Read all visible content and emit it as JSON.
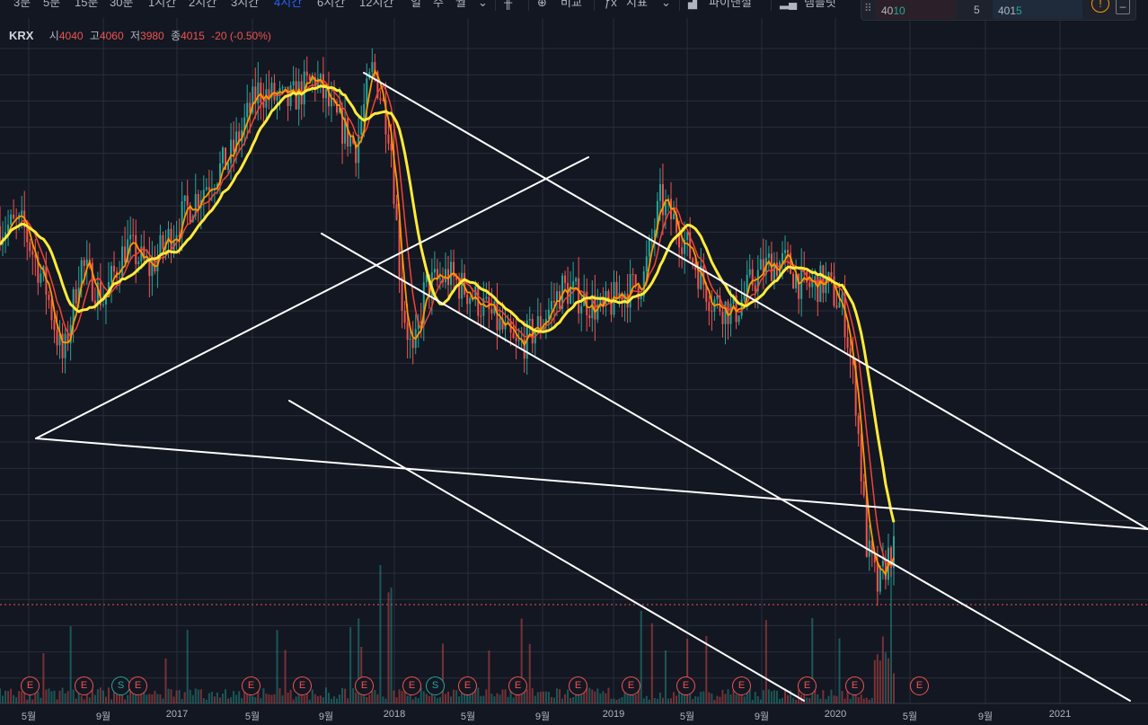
{
  "toolbar": {
    "intervals": [
      "3분",
      "5분",
      "15분",
      "30분",
      "1시간",
      "2시간",
      "3시간",
      "4시간",
      "6시간",
      "12시간",
      "일",
      "주",
      "월"
    ],
    "active_interval": "4시간",
    "compare_label": "비교",
    "indicators_label": "지표",
    "financials_label": "파이낸셜",
    "templates_label": "템플릿"
  },
  "widget": {
    "left_prefix": "40",
    "left_suffix": "10",
    "qty": "5",
    "right_prefix": "401",
    "right_suffix": "5"
  },
  "legend": {
    "symbol": "KRX",
    "open_label": "시",
    "open": "4040",
    "high_label": "고",
    "high": "4060",
    "low_label": "저",
    "low": "3980",
    "close_label": "종",
    "close": "4015",
    "change": "-20 (-0.50%)"
  },
  "x_axis": [
    "5월",
    "9월",
    "2017",
    "5월",
    "9월",
    "2018",
    "5월",
    "9월",
    "2019",
    "5월",
    "9월",
    "2020",
    "5월",
    "9월",
    "2021"
  ],
  "events": [
    {
      "type": "E"
    },
    {
      "type": "E"
    },
    {
      "type": "S"
    },
    {
      "type": "E"
    },
    {
      "type": "E"
    },
    {
      "type": "E"
    },
    {
      "type": "E"
    },
    {
      "type": "E"
    },
    {
      "type": "S"
    },
    {
      "type": "E"
    },
    {
      "type": "E"
    },
    {
      "type": "E"
    },
    {
      "type": "E"
    },
    {
      "type": "E"
    },
    {
      "type": "E"
    },
    {
      "type": "E"
    },
    {
      "type": "E"
    },
    {
      "type": "E"
    }
  ],
  "colors": {
    "background": "#131722",
    "grid": "#2a2e39",
    "up": "#26a69a",
    "down": "#ef5350",
    "ma_yellow": "#ffeb3b",
    "ma_orange": "#ff9800",
    "ma_red": "#f44336",
    "trendline": "#ffffff",
    "accent": "#2962ff"
  },
  "chart_data": {
    "type": "candlestick",
    "symbol": "KRX",
    "x_labels": [
      "5월",
      "9월",
      "2017",
      "5월",
      "9월",
      "2018",
      "5월",
      "9월",
      "2019",
      "5월",
      "9월",
      "2020",
      "5월",
      "9월",
      "2021"
    ],
    "price_shape_anchors": [
      [
        0,
        0.72
      ],
      [
        0.02,
        0.72
      ],
      [
        0.04,
        0.62
      ],
      [
        0.055,
        0.5
      ],
      [
        0.07,
        0.66
      ],
      [
        0.09,
        0.6
      ],
      [
        0.11,
        0.69
      ],
      [
        0.13,
        0.65
      ],
      [
        0.16,
        0.74
      ],
      [
        0.18,
        0.79
      ],
      [
        0.2,
        0.83
      ],
      [
        0.225,
        0.94
      ],
      [
        0.25,
        0.92
      ],
      [
        0.275,
        0.96
      ],
      [
        0.29,
        0.9
      ],
      [
        0.31,
        0.85
      ],
      [
        0.325,
        0.98
      ],
      [
        0.34,
        0.87
      ],
      [
        0.35,
        0.6
      ],
      [
        0.36,
        0.5
      ],
      [
        0.37,
        0.62
      ],
      [
        0.39,
        0.64
      ],
      [
        0.41,
        0.61
      ],
      [
        0.43,
        0.57
      ],
      [
        0.45,
        0.52
      ],
      [
        0.47,
        0.56
      ],
      [
        0.49,
        0.62
      ],
      [
        0.51,
        0.6
      ],
      [
        0.525,
        0.58
      ],
      [
        0.54,
        0.61
      ],
      [
        0.56,
        0.63
      ],
      [
        0.575,
        0.76
      ],
      [
        0.59,
        0.72
      ],
      [
        0.605,
        0.66
      ],
      [
        0.62,
        0.6
      ],
      [
        0.64,
        0.58
      ],
      [
        0.655,
        0.63
      ],
      [
        0.67,
        0.66
      ],
      [
        0.685,
        0.66
      ],
      [
        0.7,
        0.62
      ],
      [
        0.72,
        0.63
      ],
      [
        0.735,
        0.58
      ],
      [
        0.745,
        0.45
      ],
      [
        0.755,
        0.2
      ],
      [
        0.765,
        0.13
      ],
      [
        0.775,
        0.19
      ]
    ],
    "moving_averages": [
      "yellow",
      "orange",
      "red"
    ]
  }
}
